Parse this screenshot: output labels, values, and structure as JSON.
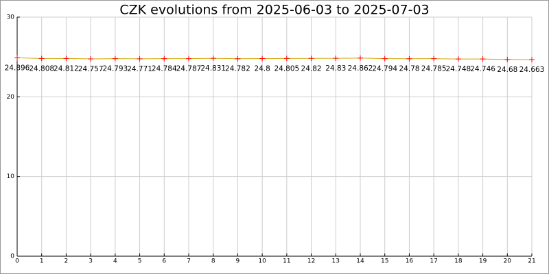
{
  "chart_data": {
    "type": "line",
    "title": "CZK evolutions from 2025-06-03 to 2025-07-03",
    "x": [
      0,
      1,
      2,
      3,
      4,
      5,
      6,
      7,
      8,
      9,
      10,
      11,
      12,
      13,
      14,
      15,
      16,
      17,
      18,
      19,
      20,
      21
    ],
    "series": [
      {
        "color": "#d4a300",
        "marker_color": "#ff0000",
        "values": [
          24.896,
          24.808,
          24.812,
          24.757,
          24.793,
          24.771,
          24.784,
          24.787,
          24.831,
          24.782,
          24.8,
          24.805,
          24.82,
          24.83,
          24.862,
          24.794,
          24.78,
          24.785,
          24.748,
          24.746,
          24.68,
          24.663
        ]
      }
    ],
    "xlim": [
      0,
      21
    ],
    "xticks": [
      0,
      1,
      2,
      3,
      4,
      5,
      6,
      7,
      8,
      9,
      10,
      11,
      12,
      13,
      14,
      15,
      16,
      17,
      18,
      19,
      20,
      21
    ],
    "ylim": [
      0,
      30
    ],
    "yticks": [
      0,
      10,
      20,
      30
    ],
    "grid": true
  }
}
